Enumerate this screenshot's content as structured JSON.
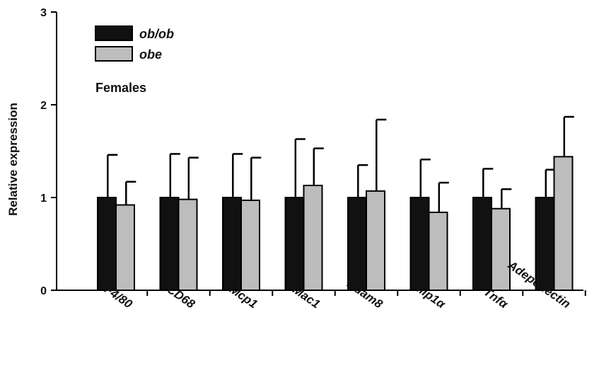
{
  "chart_data": {
    "type": "bar",
    "title": "",
    "xlabel": "",
    "ylabel": "Relative expression",
    "ylim": [
      0,
      3
    ],
    "yticks": [
      "0",
      "1",
      "2",
      "3"
    ],
    "categories": [
      "F4/80",
      "CD68",
      "Mcp1",
      "Mac1",
      "Adam8",
      "Mip1α",
      "Tnfα",
      "Adeponectin"
    ],
    "series": [
      {
        "name": "ob/ob",
        "color": "#111111",
        "values": [
          1.0,
          1.0,
          1.0,
          1.0,
          1.0,
          1.0,
          1.0,
          1.0
        ],
        "errors": [
          0.46,
          0.47,
          0.47,
          0.63,
          0.35,
          0.41,
          0.31,
          0.3
        ]
      },
      {
        "name": "obe",
        "color": "#bdbdbd",
        "values": [
          0.92,
          0.98,
          0.97,
          1.13,
          1.07,
          0.84,
          0.88,
          1.44
        ],
        "errors": [
          0.25,
          0.45,
          0.46,
          0.4,
          0.77,
          0.32,
          0.21,
          0.43
        ]
      }
    ],
    "legend_position": "top-left",
    "annotation": "Females",
    "grid": false
  }
}
